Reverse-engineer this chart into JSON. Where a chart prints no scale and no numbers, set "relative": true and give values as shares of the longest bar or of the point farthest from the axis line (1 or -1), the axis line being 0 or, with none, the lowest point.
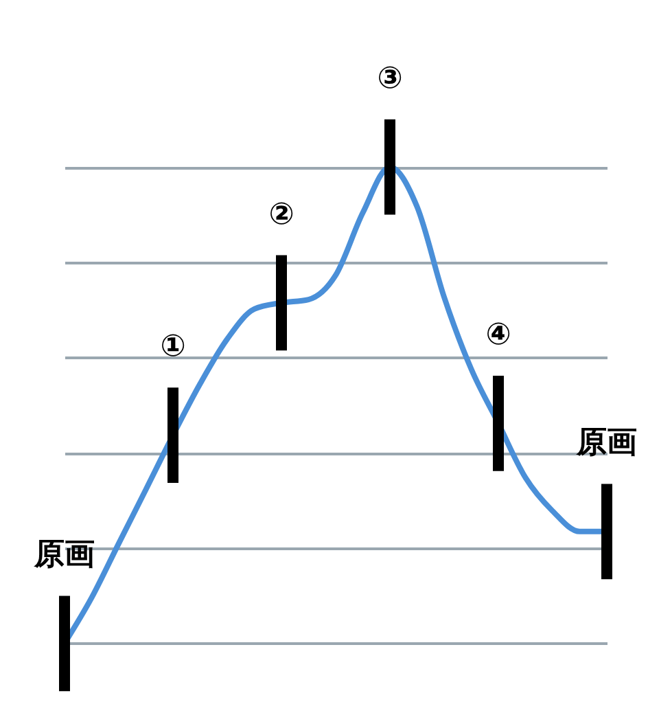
{
  "chart_data": {
    "type": "line",
    "relative": true,
    "grid": "y",
    "categories": [
      null,
      null,
      null,
      null,
      null,
      null,
      null,
      null,
      null,
      null,
      null,
      null,
      null,
      null,
      null,
      null,
      null,
      null,
      null,
      null,
      null
    ],
    "series": [
      {
        "color": "#4a8fd8",
        "values": [
          0,
          0.096,
          0.21,
          0.323,
          0.437,
          0.545,
          0.639,
          0.702,
          0.715,
          0.722,
          0.773,
          0.904,
          1,
          0.917,
          0.727,
          0.576,
          0.462,
          0.348,
          0.278,
          0.235,
          0.235
        ]
      }
    ],
    "annotations": [
      "原画",
      "①",
      "②",
      "③",
      "④",
      "原画"
    ]
  }
}
